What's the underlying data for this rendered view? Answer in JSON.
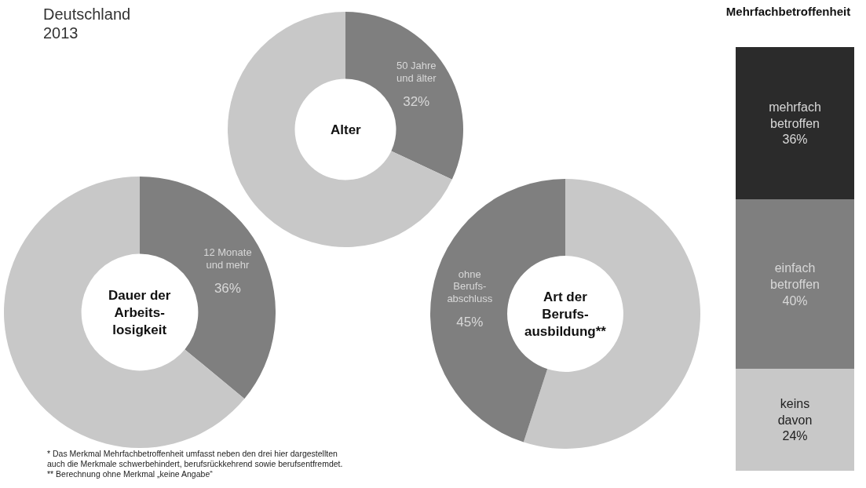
{
  "chart_data": [
    {
      "type": "other",
      "title": "Deutschland",
      "subtitle": "2013",
      "annotations": [
        "*  Das Merkmal Mehrfachbetroffenheit umfasst neben den drei hier dargestellten\nauch die Merkmale schwerbehindert, berufsrückkehrend sowie berufsentfremdet.",
        "** Berechnung ohne Merkmal „keine Angabe“"
      ]
    },
    {
      "type": "donut",
      "title": "Alter",
      "categories": [
        "50 Jahre\nund älter",
        null
      ],
      "values": [
        32,
        68
      ],
      "colors": [
        "#7f7f7f",
        "#c8c8c8"
      ],
      "value_labels": [
        "32%",
        null
      ]
    },
    {
      "type": "donut",
      "title": "Dauer der\nArbeits-\nlosigkeit",
      "categories": [
        "12 Monate\nund mehr",
        null
      ],
      "values": [
        36,
        64
      ],
      "colors": [
        "#7f7f7f",
        "#c8c8c8"
      ],
      "value_labels": [
        "36%",
        null
      ]
    },
    {
      "type": "donut",
      "title": "Art der\nBerufs-\nausbildung**",
      "categories": [
        null,
        "ohne\nBerufs-\nabschluss"
      ],
      "values": [
        55,
        45
      ],
      "colors": [
        "#c8c8c8",
        "#7f7f7f"
      ],
      "value_labels": [
        null,
        "45%"
      ]
    },
    {
      "type": "bar",
      "title": "Mehrfachbetroffenheit",
      "stacked": true,
      "categories": [
        null
      ],
      "ylim": [
        0,
        100
      ],
      "series": [
        {
          "name": "keins\ndavon",
          "color": "#c8c8c8",
          "values": [
            24
          ],
          "value_labels": [
            "24%"
          ]
        },
        {
          "name": "einfach\nbetroffen",
          "color": "#7f7f7f",
          "values": [
            40
          ],
          "value_labels": [
            "40%"
          ]
        },
        {
          "name": "mehrfach\nbetroffen",
          "color": "#2b2b2b",
          "values": [
            36
          ],
          "value_labels": [
            "36%"
          ]
        }
      ]
    }
  ]
}
